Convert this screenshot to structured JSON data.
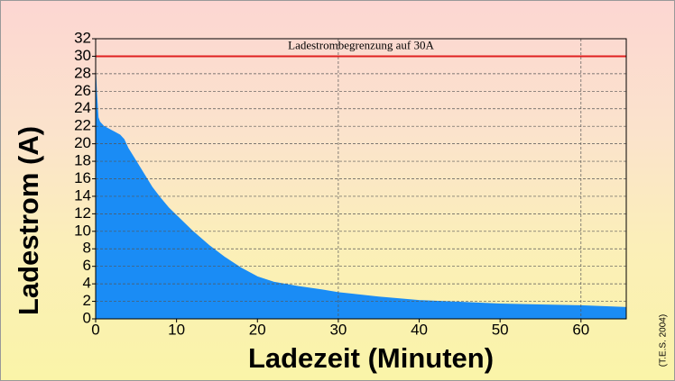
{
  "chart_data": {
    "type": "area",
    "xlabel": "Ladezeit (Minuten)",
    "ylabel": "Ladestrom (A)",
    "annotation": "Ladestrombegrenzung auf 30A",
    "limit_line": 30,
    "limit_color": "#e02020",
    "credit": "(T.E.S. 2004)",
    "color": "#1a8cf5",
    "x": [
      0,
      0.1,
      0.3,
      0.5,
      1,
      2,
      3,
      3.5,
      4,
      5,
      6,
      7,
      8,
      9,
      10,
      12,
      14,
      16,
      18,
      20,
      22,
      25,
      28,
      30,
      35,
      40,
      45,
      50,
      55,
      60,
      65.6
    ],
    "values": [
      28,
      26,
      23,
      22.5,
      22,
      21.5,
      21,
      20.5,
      19.5,
      18,
      16.5,
      15,
      13.8,
      12.7,
      11.8,
      10,
      8.4,
      7,
      5.8,
      4.8,
      4.2,
      3.7,
      3.3,
      3.0,
      2.5,
      2.1,
      1.9,
      1.7,
      1.6,
      1.5,
      1.3
    ],
    "xlim": [
      0,
      65.6
    ],
    "ylim": [
      0,
      32
    ],
    "xticks": [
      0,
      10,
      20,
      30,
      40,
      50,
      60
    ],
    "yticks": [
      0,
      2,
      4,
      6,
      8,
      10,
      12,
      14,
      16,
      18,
      20,
      22,
      24,
      26,
      28,
      30,
      32
    ],
    "xgrid": [
      30,
      60
    ],
    "grid": true
  }
}
